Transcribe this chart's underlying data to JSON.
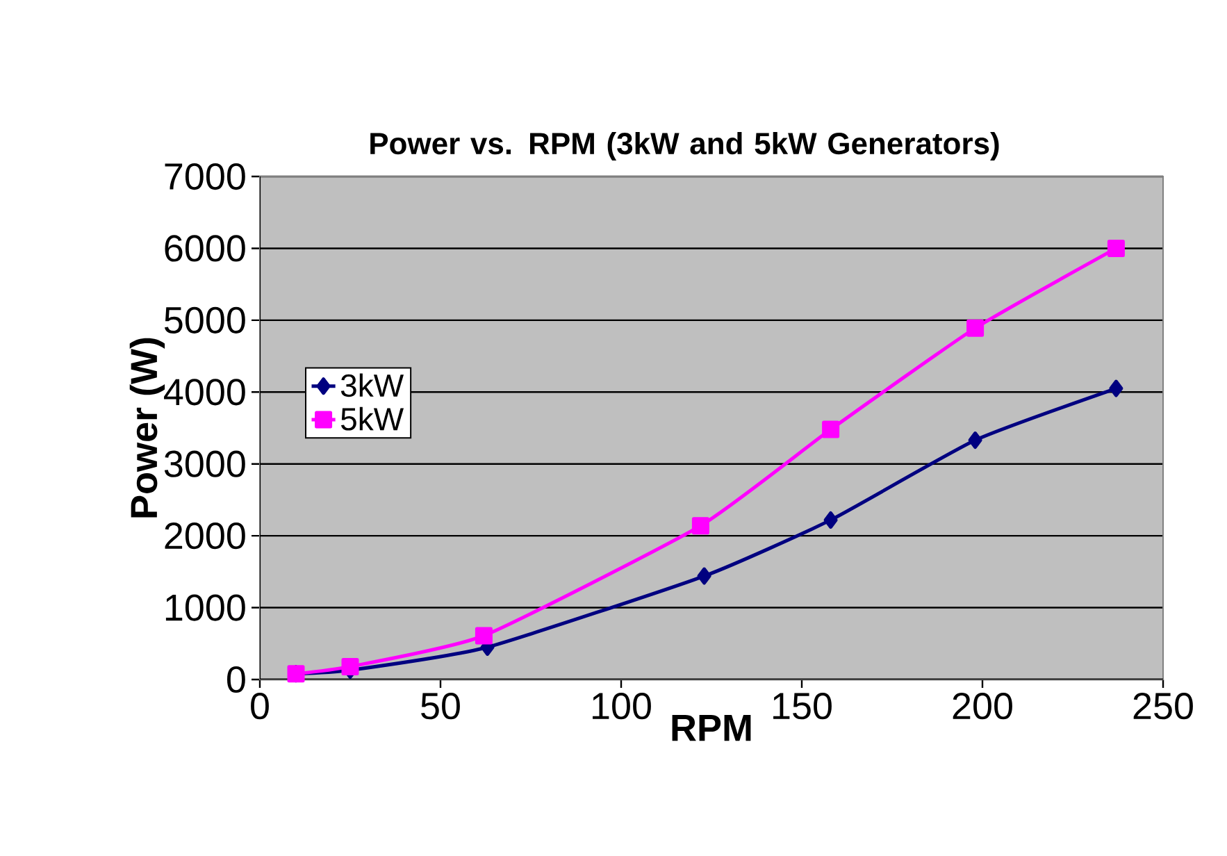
{
  "chart_data": {
    "type": "line",
    "title": "Power vs. RPM (3kW and 5kW Generators)",
    "xlabel": "RPM",
    "ylabel": "Power (W)",
    "series": [
      {
        "name": "3kW",
        "color": "#000080",
        "marker": "diamond",
        "x": [
          10,
          25,
          63,
          123,
          158,
          198,
          237
        ],
        "values": [
          80,
          130,
          450,
          1440,
          2220,
          3330,
          4050
        ]
      },
      {
        "name": "5kW",
        "color": "#ff00ff",
        "marker": "square",
        "x": [
          10,
          25,
          62,
          122,
          158,
          198,
          237
        ],
        "values": [
          80,
          180,
          610,
          2140,
          3480,
          4890,
          6000
        ]
      }
    ],
    "xlim": [
      0,
      250
    ],
    "xticks": [
      0,
      50,
      100,
      150,
      200,
      250
    ],
    "ylim": [
      0,
      7000
    ],
    "yticks": [
      0,
      1000,
      2000,
      3000,
      4000,
      5000,
      6000,
      7000
    ],
    "grid": "y",
    "legend": "left"
  }
}
